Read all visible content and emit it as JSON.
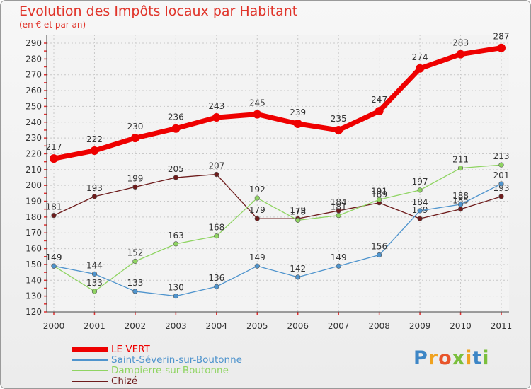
{
  "chart_data": {
    "type": "line",
    "title": "Evolution des Impôts locaux par Habitant",
    "subtitle": "(en € et par an)",
    "categories": [
      "2000",
      "2001",
      "2002",
      "2003",
      "2004",
      "2005",
      "2006",
      "2007",
      "2008",
      "2009",
      "2010",
      "2011"
    ],
    "y_ticks": [
      120,
      130,
      140,
      150,
      160,
      170,
      180,
      190,
      200,
      210,
      220,
      230,
      240,
      250,
      260,
      270,
      280,
      290
    ],
    "ylim": [
      120,
      290
    ],
    "grid": true,
    "legend_position": "bottom-left",
    "series": [
      {
        "name": "LE VERT",
        "color": "#ee0000",
        "values": [
          217,
          222,
          230,
          236,
          243,
          245,
          239,
          235,
          247,
          274,
          283,
          287
        ]
      },
      {
        "name": "Saint-Séverin-sur-Boutonne",
        "color": "#4f94cd",
        "values": [
          149,
          144,
          133,
          130,
          136,
          149,
          142,
          149,
          156,
          184,
          188,
          201
        ]
      },
      {
        "name": "Dampierre-sur-Boutonne",
        "color": "#8fd462",
        "values": [
          149,
          133,
          152,
          163,
          168,
          192,
          178,
          181,
          191,
          197,
          211,
          213
        ]
      },
      {
        "name": "Chizé",
        "color": "#6e1c1c",
        "values": [
          181,
          193,
          199,
          205,
          207,
          179,
          179,
          184,
          189,
          179,
          185,
          193
        ]
      }
    ]
  },
  "brand": {
    "letters": [
      "P",
      "r",
      "o",
      "x",
      "i",
      "t",
      "i"
    ],
    "colors": [
      "#3d86c6",
      "#f0a21f",
      "#e8552b",
      "#7bbf3d",
      "#f0a21f",
      "#3d86c6",
      "#7bbf3d"
    ]
  }
}
